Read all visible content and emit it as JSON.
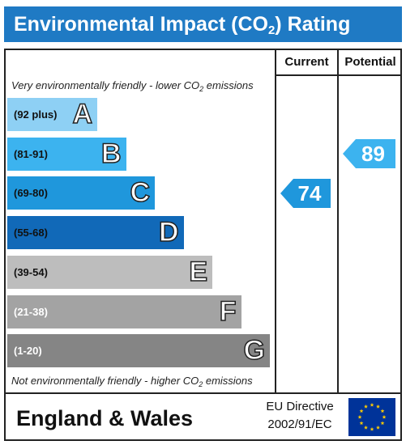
{
  "header": {
    "title_prefix": "Environmental Impact (CO",
    "title_sub": "2",
    "title_suffix": ") Rating"
  },
  "columns": {
    "current": "Current",
    "potential": "Potential"
  },
  "notes": {
    "top_prefix": "Very environmentally friendly - lower CO",
    "top_sub": "2",
    "top_suffix": " emissions",
    "bottom_prefix": "Not environmentally friendly - higher CO",
    "bottom_sub": "2",
    "bottom_suffix": " emissions"
  },
  "chart_data": {
    "type": "bar",
    "bands": [
      {
        "letter": "A",
        "range": "(92 plus)",
        "color": "#8ed0f4",
        "range_color": "#111111"
      },
      {
        "letter": "B",
        "range": "(81-91)",
        "color": "#3cb3ef",
        "range_color": "#111111"
      },
      {
        "letter": "C",
        "range": "(69-80)",
        "color": "#1f97dc",
        "range_color": "#111111"
      },
      {
        "letter": "D",
        "range": "(55-68)",
        "color": "#1169b8",
        "range_color": "#111111"
      },
      {
        "letter": "E",
        "range": "(39-54)",
        "color": "#bdbdbd",
        "range_color": "#111111"
      },
      {
        "letter": "F",
        "range": "(21-38)",
        "color": "#a3a3a3",
        "range_color": "#ffffff"
      },
      {
        "letter": "G",
        "range": "(1-20)",
        "color": "#858585",
        "range_color": "#ffffff"
      }
    ],
    "current": {
      "value": 74,
      "band": "C",
      "color": "#1f97dc"
    },
    "potential": {
      "value": 89,
      "band": "B",
      "color": "#3cb3ef"
    }
  },
  "footer": {
    "region": "England & Wales",
    "directive_line1": "EU Directive",
    "directive_line2": "2002/91/EC"
  },
  "icons": {
    "flag": "eu-flag-icon"
  }
}
